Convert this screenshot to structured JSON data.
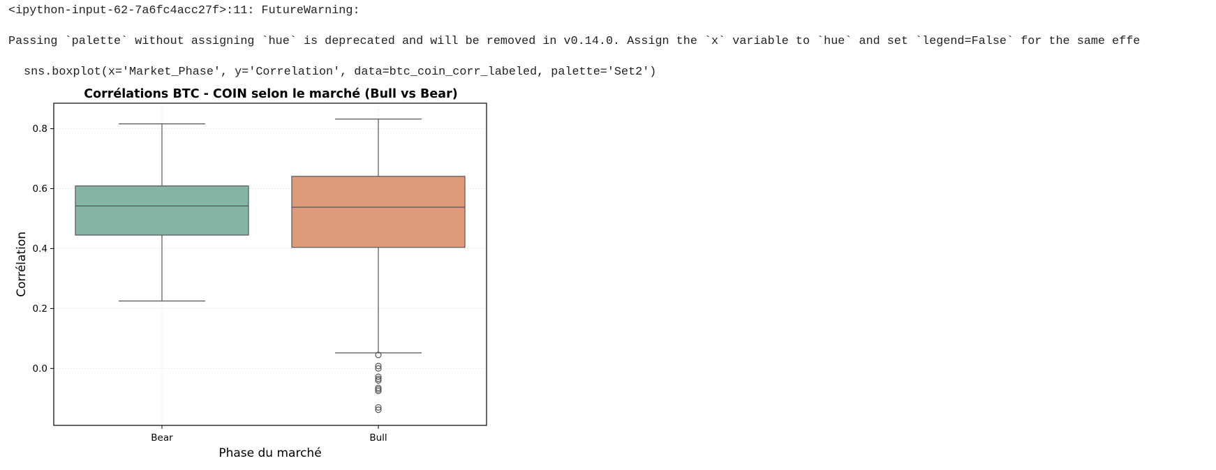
{
  "output": {
    "warning_header": "<ipython-input-62-7a6fc4acc27f>:11: FutureWarning:",
    "warning_message": "Passing `palette` without assigning `hue` is deprecated and will be removed in v0.14.0. Assign the `x` variable to `hue` and set `legend=False` for the same effe",
    "code_line": "sns.boxplot(x='Market_Phase', y='Correlation', data=btc_coin_corr_labeled, palette='Set2')"
  },
  "chart_data": {
    "type": "box",
    "title": "Corrélations BTC - COIN selon le marché (Bull vs Bear)",
    "xlabel": "Phase du marché",
    "ylabel": "Corrélation",
    "ylim": [
      -0.19,
      0.885
    ],
    "yticks": [
      "0.0",
      "0.2",
      "0.4",
      "0.6",
      "0.8"
    ],
    "categories": [
      "Bear",
      "Bull"
    ],
    "grid": true,
    "boxes": [
      {
        "category": "Bear",
        "whisker_low": 0.225,
        "q1": 0.445,
        "median": 0.542,
        "q3": 0.609,
        "whisker_high": 0.816,
        "outliers": [],
        "color": "#84b6a3"
      },
      {
        "category": "Bull",
        "whisker_low": 0.052,
        "q1": 0.404,
        "median": 0.538,
        "q3": 0.641,
        "whisker_high": 0.832,
        "outliers": [
          0.045,
          0.008,
          0.0,
          -0.028,
          -0.035,
          -0.04,
          -0.065,
          -0.07,
          -0.075,
          -0.13,
          -0.138
        ],
        "color": "#de9a7b"
      }
    ]
  }
}
